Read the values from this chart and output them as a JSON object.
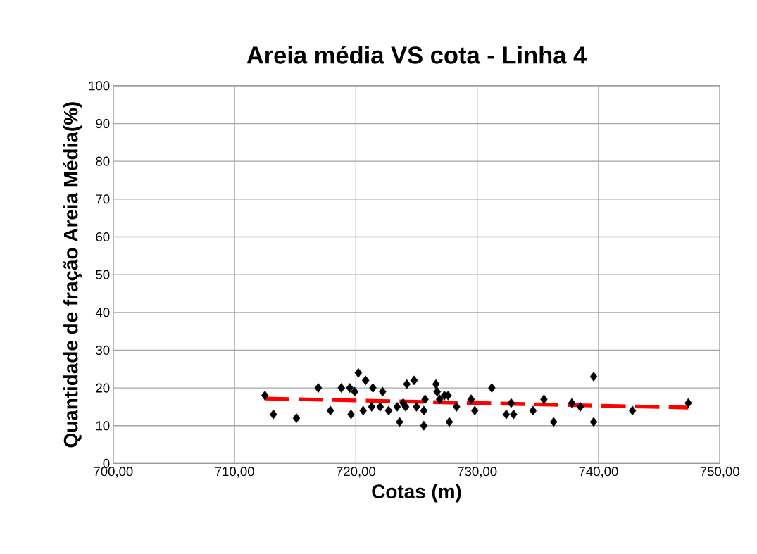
{
  "chart_data": {
    "type": "scatter",
    "title": "Areia média VS cota - Linha 4",
    "xlabel": "Cotas (m)",
    "ylabel": "Quantidade de fração Areia Média(%)",
    "xlim": [
      700,
      750
    ],
    "ylim": [
      0,
      100
    ],
    "xticks": [
      {
        "value": 700,
        "label": "700,00"
      },
      {
        "value": 710,
        "label": "710,00"
      },
      {
        "value": 720,
        "label": "720,00"
      },
      {
        "value": 730,
        "label": "730,00"
      },
      {
        "value": 740,
        "label": "740,00"
      },
      {
        "value": 750,
        "label": "750,00"
      }
    ],
    "yticks": [
      0,
      10,
      20,
      30,
      40,
      50,
      60,
      70,
      80,
      90,
      100
    ],
    "grid": true,
    "series": [
      {
        "color": "#000000",
        "marker": "diamond",
        "x": [
          712.5,
          713.2,
          715.1,
          716.9,
          717.9,
          718.8,
          719.5,
          719.6,
          719.9,
          720.2,
          720.6,
          720.8,
          721.3,
          721.4,
          722.0,
          722.2,
          722.7,
          723.4,
          723.6,
          723.9,
          724.1,
          724.2,
          724.8,
          725.0,
          725.6,
          725.6,
          725.7,
          726.6,
          726.7,
          726.9,
          727.3,
          727.6,
          727.7,
          728.3,
          729.5,
          729.8,
          731.2,
          732.4,
          732.8,
          733.0,
          734.6,
          735.5,
          736.3,
          737.8,
          738.5,
          739.6,
          739.6,
          742.8,
          747.4
        ],
        "values": [
          18,
          13,
          12,
          20,
          14,
          20,
          20,
          13,
          19,
          24,
          14,
          22,
          15,
          20,
          15,
          19,
          14,
          15,
          11,
          16,
          15,
          21,
          22,
          15,
          10,
          14,
          17,
          21,
          19,
          17,
          18,
          18,
          11,
          15,
          17,
          14,
          20,
          13,
          16,
          13,
          14,
          17,
          11,
          16,
          15,
          23,
          11,
          14,
          16
        ]
      },
      {
        "type": "line",
        "color": "#ff0000",
        "line_style": "dashed",
        "marker": "none",
        "x": [
          712.5,
          747.4
        ],
        "values": [
          17.2,
          14.8
        ]
      }
    ]
  }
}
